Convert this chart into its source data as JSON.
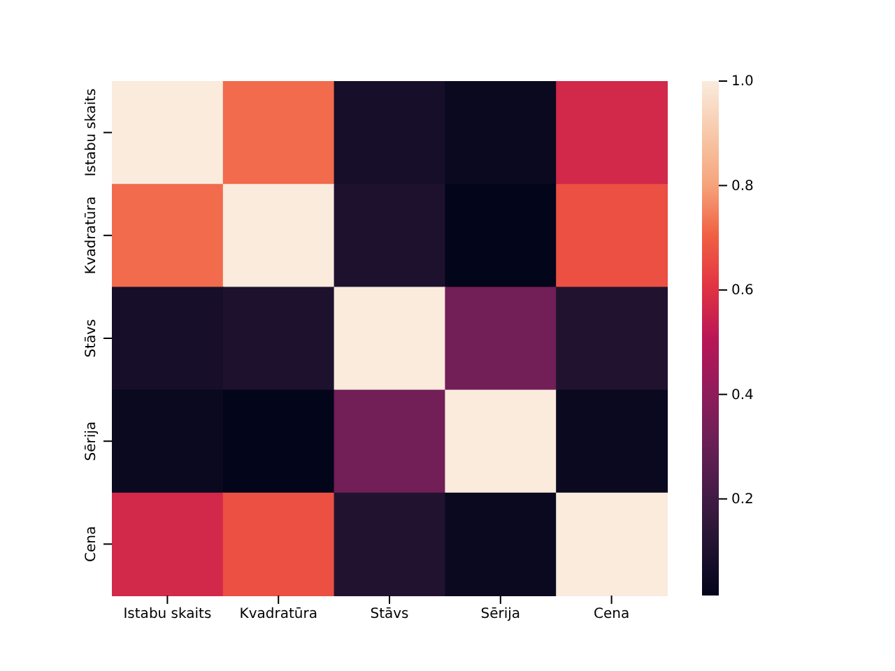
{
  "chart_data": {
    "type": "heatmap",
    "categories": [
      "Istabu skaits",
      "Kvadratūra",
      "Stāvs",
      "Sērija",
      "Cena"
    ],
    "y_categories": [
      "Istabu skaits",
      "Kvadratūra",
      "Stāvs",
      "Sērija",
      "Cena"
    ],
    "cells": [
      [
        1,
        0.72,
        0.08,
        0.04,
        0.57
      ],
      [
        0.72,
        1,
        0.1,
        0.015,
        0.67
      ],
      [
        0.08,
        0.1,
        1,
        0.33,
        0.11
      ],
      [
        0.04,
        0.015,
        0.33,
        1,
        0.04
      ],
      [
        0.57,
        0.67,
        0.11,
        0.04,
        1
      ]
    ],
    "clim": [
      0.015,
      1
    ],
    "cticks": [
      0.2,
      0.4,
      0.6,
      0.8,
      {
        "value": 1,
        "label": "1.0"
      }
    ]
  }
}
